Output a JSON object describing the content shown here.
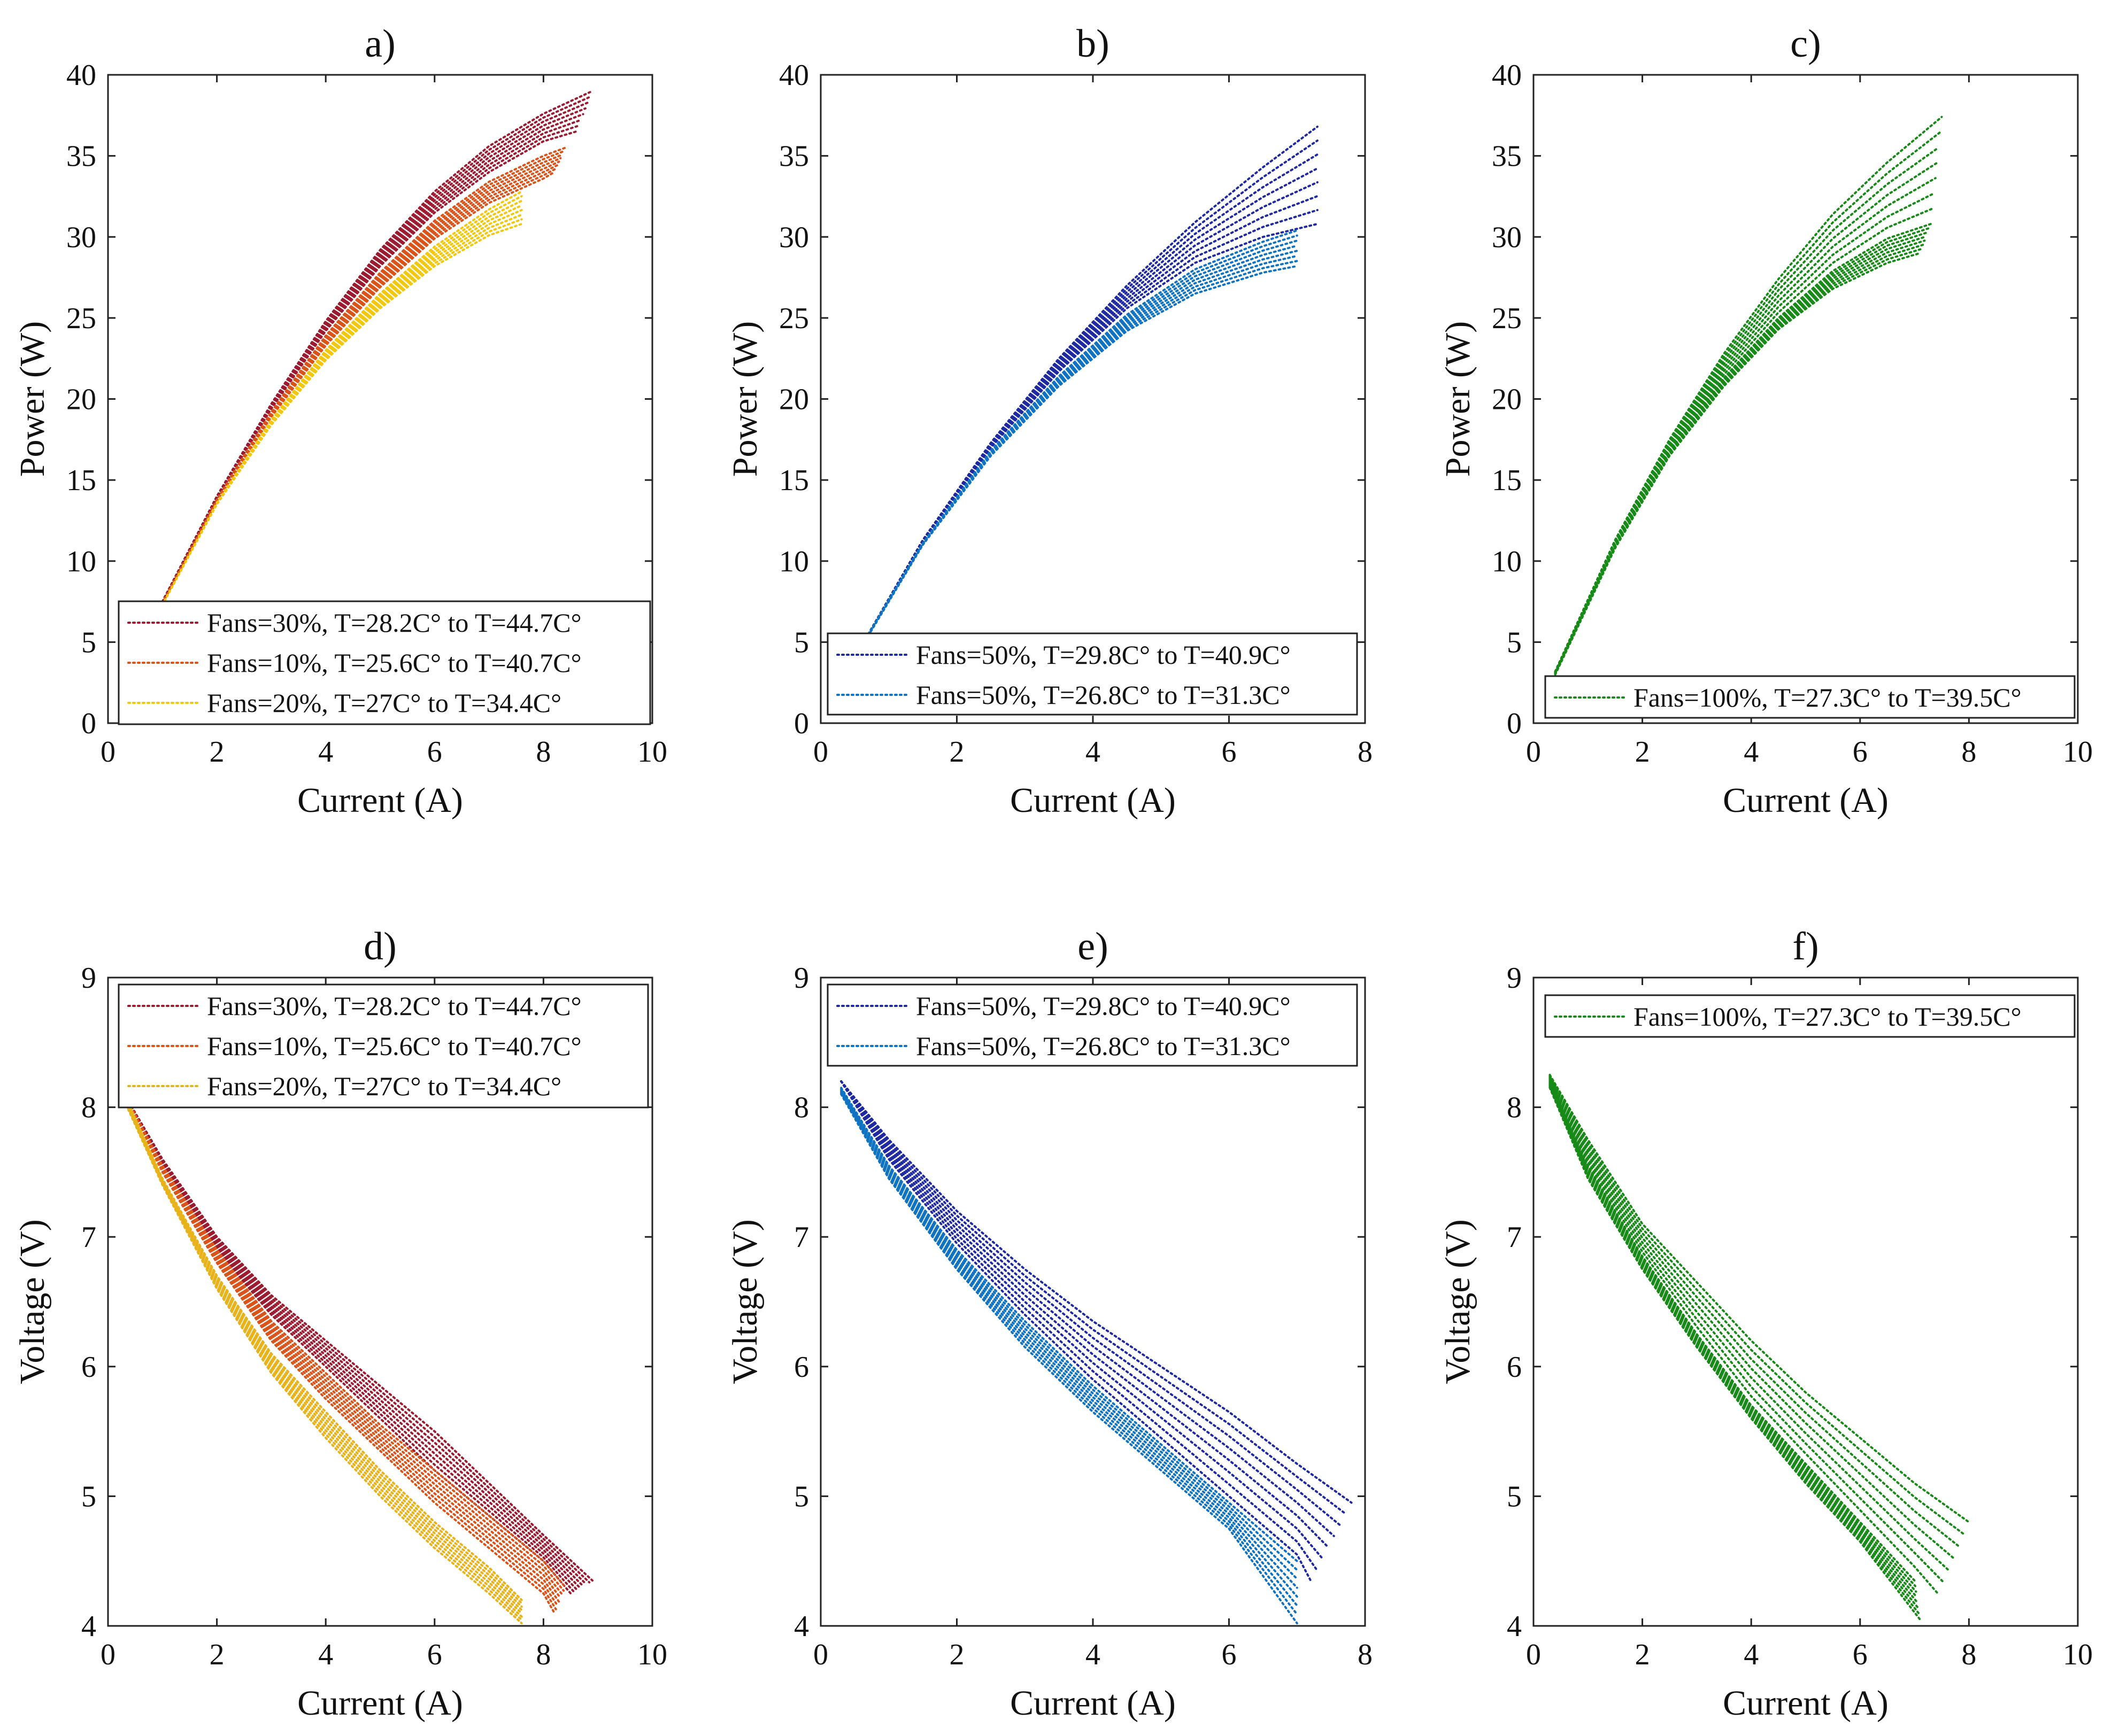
{
  "figure": {
    "colors": {
      "dark_red": "#9b1b30",
      "orange": "#d9541a",
      "yellow": "#f2c80f",
      "gold": "#e8b21a",
      "navy": "#1f2aa0",
      "blue": "#0f73c2",
      "green": "#178a17"
    }
  },
  "chart_data": [
    {
      "type": "line",
      "title": "a)",
      "xlabel": "Current (A)",
      "ylabel": "Power (W)",
      "xlim": [
        0,
        10
      ],
      "ylim": [
        0,
        40
      ],
      "xticks": [
        "0",
        "2",
        "4",
        "6",
        "8",
        "10"
      ],
      "yticks": [
        "0",
        "5",
        "10",
        "15",
        "20",
        "25",
        "30",
        "35",
        "40"
      ],
      "grid": false,
      "legend": "bottom-right",
      "series": [
        {
          "name": "Fans=30%, T=28.2C° to T=44.7C°",
          "color": "#9b1b30",
          "style": "dotted",
          "curves": [
            {
              "x": [
                1.0,
                2.0,
                3.0,
                4.0,
                5.0,
                6.0,
                7.0,
                8.0,
                8.9
              ],
              "y": [
                7.5,
                14.0,
                19.7,
                24.8,
                29.2,
                32.8,
                35.6,
                37.6,
                39.0
              ]
            },
            {
              "x": [
                1.0,
                2.0,
                3.0,
                4.0,
                5.0,
                6.0,
                7.0,
                8.0,
                8.6
              ],
              "y": [
                7.5,
                13.9,
                19.4,
                24.2,
                28.2,
                31.5,
                34.0,
                35.9,
                36.5
              ]
            }
          ]
        },
        {
          "name": "Fans=10%, T=25.6C° to T=40.7C°",
          "color": "#d9541a",
          "style": "dotted",
          "curves": [
            {
              "x": [
                1.0,
                2.0,
                3.0,
                4.0,
                5.0,
                6.0,
                7.0,
                8.0,
                8.4
              ],
              "y": [
                7.4,
                13.8,
                19.2,
                23.9,
                27.8,
                31.0,
                33.4,
                35.0,
                35.5
              ]
            },
            {
              "x": [
                1.0,
                2.0,
                3.0,
                4.0,
                5.0,
                6.0,
                7.0,
                8.0,
                8.2
              ],
              "y": [
                7.4,
                13.7,
                18.9,
                23.3,
                26.9,
                29.9,
                32.1,
                33.6,
                34.0
              ]
            }
          ]
        },
        {
          "name": "Fans=20%, T=27C° to T=34.4C°",
          "color": "#f2c80f",
          "style": "dotted",
          "curves": [
            {
              "x": [
                1.0,
                2.0,
                3.0,
                4.0,
                5.0,
                6.0,
                7.0,
                7.6
              ],
              "y": [
                7.3,
                13.6,
                18.7,
                23.0,
                26.5,
                29.4,
                31.7,
                32.8
              ]
            },
            {
              "x": [
                1.0,
                2.0,
                3.0,
                4.0,
                5.0,
                6.0,
                7.0,
                7.6
              ],
              "y": [
                7.3,
                13.5,
                18.4,
                22.4,
                25.6,
                28.2,
                30.1,
                30.8
              ]
            }
          ]
        }
      ]
    },
    {
      "type": "line",
      "title": "b)",
      "xlabel": "Current (A)",
      "ylabel": "Power (W)",
      "xlim": [
        0,
        8
      ],
      "ylim": [
        0,
        40
      ],
      "xticks": [
        "0",
        "2",
        "4",
        "6",
        "8"
      ],
      "yticks": [
        "0",
        "5",
        "10",
        "15",
        "20",
        "25",
        "30",
        "35",
        "40"
      ],
      "grid": false,
      "legend": "bottom-right",
      "series": [
        {
          "name": "Fans=50%, T=29.8C° to T=40.9C°",
          "color": "#1f2aa0",
          "style": "dotted",
          "curves": [
            {
              "x": [
                0.7,
                1.5,
                2.5,
                3.5,
                4.5,
                5.5,
                6.5,
                7.3,
                7.8
              ],
              "y": [
                5.5,
                11.3,
                17.3,
                22.5,
                27.0,
                30.9,
                34.3,
                36.8,
                38.8
              ]
            },
            {
              "x": [
                0.7,
                1.5,
                2.5,
                3.5,
                4.5,
                5.5,
                6.5,
                7.3
              ],
              "y": [
                5.5,
                11.2,
                17.0,
                21.7,
                25.6,
                28.4,
                30.0,
                30.8
              ]
            }
          ]
        },
        {
          "name": "Fans=50%, T=26.8C° to T=31.3C°",
          "color": "#0f73c2",
          "style": "dotted",
          "curves": [
            {
              "x": [
                0.7,
                1.5,
                2.5,
                3.5,
                4.5,
                5.5,
                6.5,
                7.0
              ],
              "y": [
                5.5,
                11.1,
                16.8,
                21.4,
                25.2,
                28.0,
                29.7,
                30.4
              ]
            },
            {
              "x": [
                0.7,
                1.5,
                2.5,
                3.5,
                4.5,
                5.5,
                6.5,
                7.0
              ],
              "y": [
                5.4,
                11.0,
                16.5,
                20.8,
                24.2,
                26.5,
                27.8,
                28.2
              ]
            }
          ]
        }
      ]
    },
    {
      "type": "line",
      "title": "c)",
      "xlabel": "Current (A)",
      "ylabel": "Power (W)",
      "xlim": [
        0,
        10
      ],
      "ylim": [
        0,
        40
      ],
      "xticks": [
        "0",
        "2",
        "4",
        "6",
        "8",
        "10"
      ],
      "yticks": [
        "0",
        "5",
        "10",
        "15",
        "20",
        "25",
        "30",
        "35",
        "40"
      ],
      "grid": false,
      "legend": "bottom-right",
      "series": [
        {
          "name": "Fans=100%, T=27.3C° to T=39.5C°",
          "color": "#178a17",
          "style": "dotted",
          "curves": [
            {
              "x": [
                0.4,
                1.5,
                2.5,
                3.5,
                4.5,
                5.5,
                6.5,
                7.5,
                8.5
              ],
              "y": [
                3.2,
                11.3,
                17.5,
                22.8,
                27.4,
                31.4,
                34.6,
                37.4,
                39.5
              ]
            },
            {
              "x": [
                0.4,
                1.5,
                2.5,
                3.5,
                4.5,
                5.5,
                6.5,
                7.3
              ],
              "y": [
                3.1,
                11.0,
                16.8,
                21.3,
                25.0,
                27.9,
                29.9,
                30.8
              ]
            },
            {
              "x": [
                0.4,
                1.5,
                2.5,
                3.5,
                4.5,
                5.5,
                6.5,
                7.1
              ],
              "y": [
                3.0,
                10.8,
                16.5,
                20.8,
                24.3,
                26.8,
                28.4,
                29.0
              ]
            }
          ]
        }
      ]
    },
    {
      "type": "line",
      "title": "d)",
      "xlabel": "Current (A)",
      "ylabel": "Voltage (V)",
      "xlim": [
        0,
        10
      ],
      "ylim": [
        4,
        9
      ],
      "xticks": [
        "0",
        "2",
        "4",
        "6",
        "8",
        "10"
      ],
      "yticks": [
        "4",
        "5",
        "6",
        "7",
        "8",
        "9"
      ],
      "grid": false,
      "legend": "top-left",
      "series": [
        {
          "name": "Fans=30%, T=28.2C° to T=44.7C°",
          "color": "#9b1b30",
          "style": "dotted",
          "curves": [
            {
              "x": [
                0.3,
                1.0,
                2.0,
                3.0,
                4.0,
                5.0,
                6.0,
                7.0,
                8.0,
                8.9
              ],
              "y": [
                8.1,
                7.6,
                7.0,
                6.55,
                6.2,
                5.85,
                5.5,
                5.1,
                4.7,
                4.35
              ]
            },
            {
              "x": [
                0.3,
                1.0,
                2.0,
                3.0,
                4.0,
                5.0,
                6.0,
                7.0,
                8.0,
                8.5
              ],
              "y": [
                8.1,
                7.55,
                6.9,
                6.4,
                6.0,
                5.6,
                5.2,
                4.85,
                4.5,
                4.25
              ]
            }
          ]
        },
        {
          "name": "Fans=10%, T=25.6C° to T=40.7C°",
          "color": "#d9541a",
          "style": "dotted",
          "curves": [
            {
              "x": [
                0.3,
                1.0,
                2.0,
                3.0,
                4.0,
                5.0,
                6.0,
                7.0,
                8.0,
                8.4
              ],
              "y": [
                8.1,
                7.55,
                6.9,
                6.35,
                5.95,
                5.55,
                5.2,
                4.85,
                4.5,
                4.3
              ]
            },
            {
              "x": [
                0.3,
                1.0,
                2.0,
                3.0,
                4.0,
                5.0,
                6.0,
                7.0,
                8.0,
                8.2
              ],
              "y": [
                8.1,
                7.5,
                6.8,
                6.2,
                5.75,
                5.35,
                4.95,
                4.6,
                4.25,
                4.1
              ]
            }
          ]
        },
        {
          "name": "Fans=20%, T=27C° to T=34.4C°",
          "color": "#e8b21a",
          "style": "dotted",
          "curves": [
            {
              "x": [
                0.3,
                1.0,
                2.0,
                3.0,
                4.0,
                5.0,
                6.0,
                7.0,
                7.6
              ],
              "y": [
                8.1,
                7.45,
                6.7,
                6.1,
                5.65,
                5.2,
                4.8,
                4.45,
                4.2
              ]
            },
            {
              "x": [
                0.3,
                1.0,
                2.0,
                3.0,
                4.0,
                5.0,
                6.0,
                7.0,
                7.6
              ],
              "y": [
                8.05,
                7.4,
                6.6,
                5.95,
                5.45,
                5.0,
                4.6,
                4.25,
                4.02
              ]
            }
          ]
        }
      ]
    },
    {
      "type": "line",
      "title": "e)",
      "xlabel": "Current (A)",
      "ylabel": "Voltage (V)",
      "xlim": [
        0,
        8
      ],
      "ylim": [
        4,
        9
      ],
      "xticks": [
        "0",
        "2",
        "4",
        "6",
        "8"
      ],
      "yticks": [
        "4",
        "5",
        "6",
        "7",
        "8",
        "9"
      ],
      "grid": false,
      "legend": "top-left",
      "series": [
        {
          "name": "Fans=50%, T=29.8C° to T=40.9C°",
          "color": "#1f2aa0",
          "style": "dotted",
          "curves": [
            {
              "x": [
                0.3,
                1.0,
                2.0,
                3.0,
                4.0,
                5.0,
                6.0,
                7.0,
                7.8
              ],
              "y": [
                8.2,
                7.75,
                7.2,
                6.75,
                6.35,
                6.0,
                5.65,
                5.25,
                4.95
              ]
            },
            {
              "x": [
                0.3,
                1.0,
                2.0,
                3.0,
                4.0,
                5.0,
                6.0,
                7.0,
                7.2
              ],
              "y": [
                8.2,
                7.6,
                6.95,
                6.4,
                5.9,
                5.45,
                5.0,
                4.55,
                4.35
              ]
            }
          ]
        },
        {
          "name": "Fans=50%, T=26.8C° to T=31.3C°",
          "color": "#0f73c2",
          "style": "dotted",
          "curves": [
            {
              "x": [
                0.3,
                1.0,
                2.0,
                3.0,
                4.0,
                5.0,
                6.0,
                7.0,
                7.2
              ],
              "y": [
                8.15,
                7.55,
                6.9,
                6.35,
                5.85,
                5.4,
                4.95,
                4.5,
                4.22
              ]
            },
            {
              "x": [
                0.3,
                1.0,
                2.0,
                3.0,
                4.0,
                5.0,
                6.0,
                7.0
              ],
              "y": [
                8.1,
                7.45,
                6.75,
                6.15,
                5.65,
                5.2,
                4.75,
                4.02
              ]
            }
          ]
        }
      ]
    },
    {
      "type": "line",
      "title": "f)",
      "xlabel": "Current (A)",
      "ylabel": "Voltage (V)",
      "xlim": [
        0,
        10
      ],
      "ylim": [
        4,
        9
      ],
      "xticks": [
        "0",
        "2",
        "4",
        "6",
        "8",
        "10"
      ],
      "yticks": [
        "4",
        "5",
        "6",
        "7",
        "8",
        "9"
      ],
      "grid": false,
      "legend": "top-right",
      "series": [
        {
          "name": "Fans=100%, T=27.3C° to T=39.5C°",
          "color": "#178a17",
          "style": "dotted",
          "curves": [
            {
              "x": [
                0.3,
                1.0,
                2.0,
                3.0,
                4.0,
                5.0,
                6.0,
                7.0,
                8.0,
                8.5
              ],
              "y": [
                8.25,
                7.75,
                7.1,
                6.65,
                6.2,
                5.8,
                5.45,
                5.1,
                4.8,
                4.65
              ]
            },
            {
              "x": [
                0.3,
                1.0,
                2.0,
                3.0,
                4.0,
                5.0,
                6.0,
                7.0,
                7.35
              ],
              "y": [
                8.2,
                7.55,
                6.85,
                6.25,
                5.7,
                5.25,
                4.8,
                4.35,
                4.15
              ]
            },
            {
              "x": [
                0.3,
                1.0,
                2.0,
                3.0,
                4.0,
                5.0,
                6.0,
                7.1
              ],
              "y": [
                8.15,
                7.45,
                6.75,
                6.15,
                5.6,
                5.1,
                4.65,
                4.05
              ]
            }
          ]
        }
      ]
    }
  ]
}
